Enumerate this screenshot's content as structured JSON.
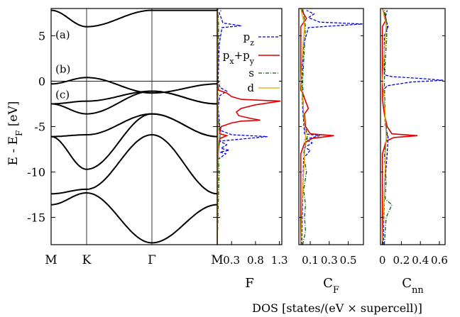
{
  "figure": {
    "ylabel": "E - E_F [eV]",
    "bottom_label": "DOS [states/(eV × supercell)]"
  },
  "chart_data": [
    {
      "type": "line",
      "panel": "band structure",
      "xlabel_ticks": [
        "M",
        "K",
        "Γ",
        "M"
      ],
      "ylim": [
        -18,
        8
      ],
      "yticks": [
        5,
        0,
        -5,
        -10,
        -15
      ],
      "fermi_level": 0,
      "panel_labels": [
        {
          "text": "(a)",
          "y": 5.2
        },
        {
          "text": "(b)",
          "y": 1.4
        },
        {
          "text": "(c)",
          "y": -1.4
        }
      ],
      "bands_at_high_symmetry_points": [
        {
          "name": "band 1",
          "values": [
            -13.6,
            -12.3,
            -17.8,
            -13.6
          ]
        },
        {
          "name": "band 2",
          "values": [
            -12.4,
            -11.9,
            -5.9,
            -12.4
          ]
        },
        {
          "name": "band 3",
          "values": [
            -6.1,
            -9.7,
            -3.6,
            -6.1
          ]
        },
        {
          "name": "band 4",
          "values": [
            -6.1,
            -5.9,
            -3.6,
            -6.1
          ]
        },
        {
          "name": "band 5",
          "values": [
            -2.5,
            -3.6,
            -1.1,
            -2.5
          ]
        },
        {
          "name": "band 6",
          "values": [
            -2.5,
            -2.2,
            -1.1,
            -2.5
          ]
        },
        {
          "name": "band 7",
          "values": [
            -0.3,
            0.4,
            -1.3,
            -0.3
          ]
        },
        {
          "name": "band 8",
          "values": [
            7.8,
            6.0,
            7.8,
            7.8
          ]
        }
      ]
    },
    {
      "type": "line",
      "panel": "DOS",
      "xlabel": "F",
      "xlim": [
        0,
        1.35
      ],
      "xticks": [
        0.3,
        0.8,
        1.3
      ],
      "ylim": [
        -18,
        8
      ],
      "legend": [
        "p_z",
        "p_x+p_y",
        "s",
        "d"
      ],
      "series": [
        {
          "name": "p_z",
          "color": "#0000dd",
          "points": [
            [
              0,
              -18
            ],
            [
              0.01,
              -12
            ],
            [
              0.02,
              -8.6
            ],
            [
              0.18,
              -8.0
            ],
            [
              0.06,
              -7.8
            ],
            [
              0.25,
              -7.6
            ],
            [
              0.08,
              -7.4
            ],
            [
              0.2,
              -7.0
            ],
            [
              0.05,
              -6.6
            ],
            [
              1.05,
              -6.1
            ],
            [
              0.3,
              -5.9
            ],
            [
              0.06,
              -5.4
            ],
            [
              0.02,
              -3
            ],
            [
              0.05,
              -1.6
            ],
            [
              0.2,
              -1.1
            ],
            [
              0.06,
              -0.7
            ],
            [
              0.02,
              0
            ],
            [
              0.04,
              4
            ],
            [
              0.1,
              5.9
            ],
            [
              0.5,
              6.1
            ],
            [
              0.12,
              6.4
            ],
            [
              0.08,
              7
            ],
            [
              0.04,
              7.5
            ],
            [
              0.08,
              7.8
            ]
          ]
        },
        {
          "name": "p_x+p_y",
          "color": "#dd0000",
          "points": [
            [
              0,
              -18
            ],
            [
              0.01,
              -9
            ],
            [
              0.03,
              -7.2
            ],
            [
              0.06,
              -6.3
            ],
            [
              0.2,
              -6.0
            ],
            [
              0.05,
              -5.8
            ],
            [
              0.08,
              -5.0
            ],
            [
              0.3,
              -4.6
            ],
            [
              0.5,
              -4.4
            ],
            [
              0.9,
              -4.3
            ],
            [
              0.7,
              -4.1
            ],
            [
              0.45,
              -3.8
            ],
            [
              0.4,
              -3.4
            ],
            [
              0.5,
              -3.0
            ],
            [
              0.8,
              -2.6
            ],
            [
              1.32,
              -2.2
            ],
            [
              0.5,
              -2.0
            ],
            [
              0.3,
              -1.7
            ],
            [
              0.2,
              -1.3
            ],
            [
              0.03,
              -1.0
            ],
            [
              0.0,
              0
            ],
            [
              0.01,
              6
            ],
            [
              0.0,
              8
            ]
          ]
        },
        {
          "name": "s",
          "color": "#006600",
          "points": [
            [
              0,
              -18
            ],
            [
              0.02,
              -14
            ],
            [
              0.04,
              -10
            ],
            [
              0.02,
              -8
            ],
            [
              0.06,
              -6
            ],
            [
              0.02,
              -4
            ],
            [
              0.01,
              0
            ],
            [
              0.03,
              6
            ],
            [
              0.01,
              8
            ]
          ]
        },
        {
          "name": "d",
          "color": "#e6a000",
          "points": [
            [
              0,
              -18
            ],
            [
              0.01,
              -12
            ],
            [
              0.02,
              -6.1
            ],
            [
              0.01,
              -2
            ],
            [
              0.0,
              0
            ],
            [
              0.01,
              6.1
            ],
            [
              0.0,
              8
            ]
          ]
        }
      ]
    },
    {
      "type": "line",
      "panel": "DOS",
      "xlabel": "C_F",
      "xlim": [
        -0.02,
        0.66
      ],
      "xticks": [
        0.1,
        0.3,
        0.5
      ],
      "ylim": [
        -18,
        8
      ],
      "series": [
        {
          "name": "p_z",
          "color": "#0000dd",
          "points": [
            [
              0.01,
              -18
            ],
            [
              0.02,
              -13
            ],
            [
              0.03,
              -8.5
            ],
            [
              0.1,
              -7.6
            ],
            [
              0.04,
              -7.3
            ],
            [
              0.12,
              -6.8
            ],
            [
              0.05,
              -6.4
            ],
            [
              0.2,
              -6.0
            ],
            [
              0.04,
              -5.8
            ],
            [
              0.02,
              -3
            ],
            [
              0.01,
              0
            ],
            [
              0.03,
              4
            ],
            [
              0.08,
              5.9
            ],
            [
              0.65,
              6.3
            ],
            [
              0.2,
              6.5
            ],
            [
              0.08,
              7
            ],
            [
              0.14,
              7.4
            ],
            [
              0.06,
              7.8
            ]
          ]
        },
        {
          "name": "p_x+p_y",
          "color": "#dd0000",
          "points": [
            [
              0.0,
              -18
            ],
            [
              0.0,
              -8
            ],
            [
              0.04,
              -6.8
            ],
            [
              0.12,
              -6.3
            ],
            [
              0.35,
              -6.0
            ],
            [
              0.1,
              -5.8
            ],
            [
              0.05,
              -5.0
            ],
            [
              0.04,
              -3.6
            ],
            [
              0.08,
              -3.0
            ],
            [
              0.05,
              -2.2
            ],
            [
              0.02,
              -1.3
            ],
            [
              0.0,
              -1.0
            ],
            [
              0.0,
              6
            ],
            [
              0.06,
              6.9
            ],
            [
              0.0,
              8
            ]
          ]
        },
        {
          "name": "s",
          "color": "#006600",
          "points": [
            [
              0.02,
              -18
            ],
            [
              0.05,
              -16.5
            ],
            [
              0.04,
              -15
            ],
            [
              0.05,
              -13.6
            ],
            [
              0.03,
              -12
            ],
            [
              0.06,
              -10
            ],
            [
              0.03,
              -8
            ],
            [
              0.07,
              -6
            ],
            [
              0.03,
              -4
            ],
            [
              0.02,
              0
            ],
            [
              0.05,
              6
            ],
            [
              0.02,
              8
            ]
          ]
        },
        {
          "name": "d",
          "color": "#e6a000",
          "points": [
            [
              0.0,
              -18
            ],
            [
              0.02,
              -12
            ],
            [
              0.05,
              -6.1
            ],
            [
              0.02,
              -2
            ],
            [
              0.0,
              0
            ],
            [
              0.04,
              6.2
            ],
            [
              0.0,
              8
            ]
          ]
        }
      ]
    },
    {
      "type": "line",
      "panel": "DOS",
      "xlabel": "C_nn",
      "xlim": [
        -0.02,
        0.66
      ],
      "xticks": [
        0,
        0.2,
        0.4,
        0.6
      ],
      "ylim": [
        -18,
        8
      ],
      "series": [
        {
          "name": "p_z",
          "color": "#0000dd",
          "points": [
            [
              0.01,
              -18
            ],
            [
              0.02,
              -12
            ],
            [
              0.05,
              -8
            ],
            [
              0.06,
              -6.1
            ],
            [
              0.03,
              -5
            ],
            [
              0.02,
              -2
            ],
            [
              0.01,
              -1
            ],
            [
              0.05,
              -0.5
            ],
            [
              0.3,
              -0.1
            ],
            [
              0.64,
              0.1
            ],
            [
              0.4,
              0.3
            ],
            [
              0.1,
              0.5
            ],
            [
              0.02,
              0.7
            ],
            [
              0.02,
              5
            ],
            [
              0.06,
              6.0
            ],
            [
              0.03,
              7
            ],
            [
              0.05,
              7.8
            ]
          ]
        },
        {
          "name": "p_x+p_y",
          "color": "#dd0000",
          "points": [
            [
              0.0,
              -18
            ],
            [
              0.0,
              -8
            ],
            [
              0.04,
              -6.6
            ],
            [
              0.12,
              -6.2
            ],
            [
              0.37,
              -6.0
            ],
            [
              0.1,
              -5.8
            ],
            [
              0.05,
              -5.0
            ],
            [
              0.02,
              -3.6
            ],
            [
              0.0,
              -2.0
            ],
            [
              0.0,
              6
            ],
            [
              0.04,
              6.8
            ],
            [
              0.0,
              8
            ]
          ]
        },
        {
          "name": "s",
          "color": "#006600",
          "points": [
            [
              0.02,
              -18
            ],
            [
              0.04,
              -15
            ],
            [
              0.1,
              -13.6
            ],
            [
              0.03,
              -13
            ],
            [
              0.04,
              -11
            ],
            [
              0.02,
              -8
            ],
            [
              0.05,
              -6
            ],
            [
              0.03,
              -4
            ],
            [
              0.02,
              0
            ],
            [
              0.05,
              6
            ],
            [
              0.02,
              8
            ]
          ]
        },
        {
          "name": "d",
          "color": "#e6a000",
          "points": [
            [
              0.0,
              -18
            ],
            [
              0.02,
              -12
            ],
            [
              0.04,
              -6.1
            ],
            [
              0.02,
              -2
            ],
            [
              0.0,
              0
            ],
            [
              0.04,
              6.2
            ],
            [
              0.0,
              8
            ]
          ]
        }
      ]
    }
  ]
}
